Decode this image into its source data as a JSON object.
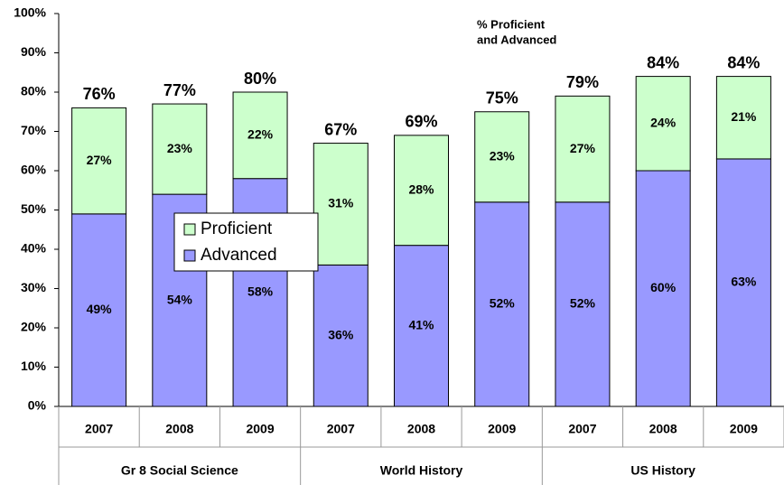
{
  "chart_data": {
    "type": "stacked_bar",
    "annotation": [
      "% Proficient",
      "and Advanced"
    ],
    "categories": [
      "2007",
      "2008",
      "2009",
      "2007",
      "2008",
      "2009",
      "2007",
      "2008",
      "2009"
    ],
    "groups": [
      {
        "name": "Gr 8 Social Science",
        "size": 3
      },
      {
        "name": "World History",
        "size": 3
      },
      {
        "name": "US History",
        "size": 3
      }
    ],
    "series": [
      {
        "name": "Advanced",
        "color": "#9999ff",
        "values": [
          49,
          54,
          58,
          36,
          41,
          52,
          52,
          60,
          63
        ],
        "value_labels": [
          "49%",
          "54%",
          "58%",
          "36%",
          "41%",
          "52%",
          "52%",
          "60%",
          "63%"
        ]
      },
      {
        "name": "Proficient",
        "color": "#ccffcc",
        "values": [
          27,
          23,
          22,
          31,
          28,
          23,
          27,
          24,
          21
        ],
        "value_labels": [
          "27%",
          "23%",
          "22%",
          "31%",
          "28%",
          "23%",
          "27%",
          "24%",
          "21%"
        ]
      }
    ],
    "totals": [
      76,
      77,
      80,
      67,
      69,
      75,
      79,
      84,
      84
    ],
    "total_labels": [
      "76%",
      "77%",
      "80%",
      "67%",
      "69%",
      "75%",
      "79%",
      "84%",
      "84%"
    ],
    "ylim": [
      0,
      100
    ],
    "yticks": [
      {
        "value": 0,
        "label": "0%"
      },
      {
        "value": 10,
        "label": "10%"
      },
      {
        "value": 20,
        "label": "20%"
      },
      {
        "value": 30,
        "label": "30%"
      },
      {
        "value": 40,
        "label": "40%"
      },
      {
        "value": 50,
        "label": "50%"
      },
      {
        "value": 60,
        "label": "60%"
      },
      {
        "value": 70,
        "label": "70%"
      },
      {
        "value": 80,
        "label": "80%"
      },
      {
        "value": 90,
        "label": "90%"
      },
      {
        "value": 100,
        "label": "100%"
      }
    ],
    "legend": "center-left"
  }
}
